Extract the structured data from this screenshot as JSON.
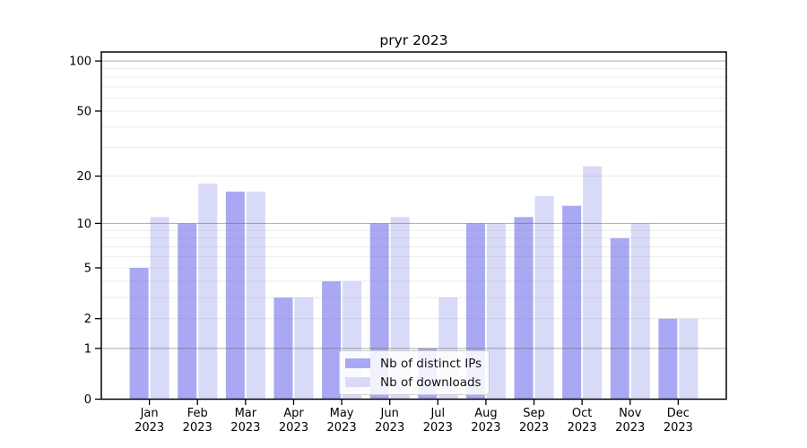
{
  "chart_data": {
    "type": "bar",
    "title": "pryr 2023",
    "categories": [
      "Jan",
      "Feb",
      "Mar",
      "Apr",
      "May",
      "Jun",
      "Jul",
      "Aug",
      "Sep",
      "Oct",
      "Nov",
      "Dec"
    ],
    "x_year_label": "2023",
    "series": [
      {
        "name": "Nb of distinct IPs",
        "color": "#a9a9f3",
        "values": [
          5,
          10,
          16,
          3,
          4,
          10,
          1,
          10,
          11,
          13,
          8,
          2
        ]
      },
      {
        "name": "Nb of downloads",
        "color": "#d9d9f8",
        "values": [
          11,
          18,
          16,
          3,
          4,
          11,
          3,
          10,
          15,
          23,
          10,
          2
        ]
      }
    ],
    "y_axis": {
      "scale": "log1p",
      "tick_labels": [
        100,
        50,
        20,
        10,
        5,
        2,
        1,
        0
      ],
      "major_gridlines": [
        1,
        10,
        100
      ],
      "minor_gridlines": [
        2,
        3,
        4,
        5,
        6,
        7,
        8,
        9,
        20,
        30,
        40,
        50,
        60,
        70,
        80,
        90
      ],
      "ylim": [
        0,
        114
      ]
    },
    "legend_position": "lower-center",
    "grid": true
  },
  "style_colors": {
    "axis": "#000000",
    "major_grid": "rgba(90,90,90,0.45)",
    "minor_grid": "rgba(120,120,120,0.14)",
    "tick_text": "#000000"
  }
}
